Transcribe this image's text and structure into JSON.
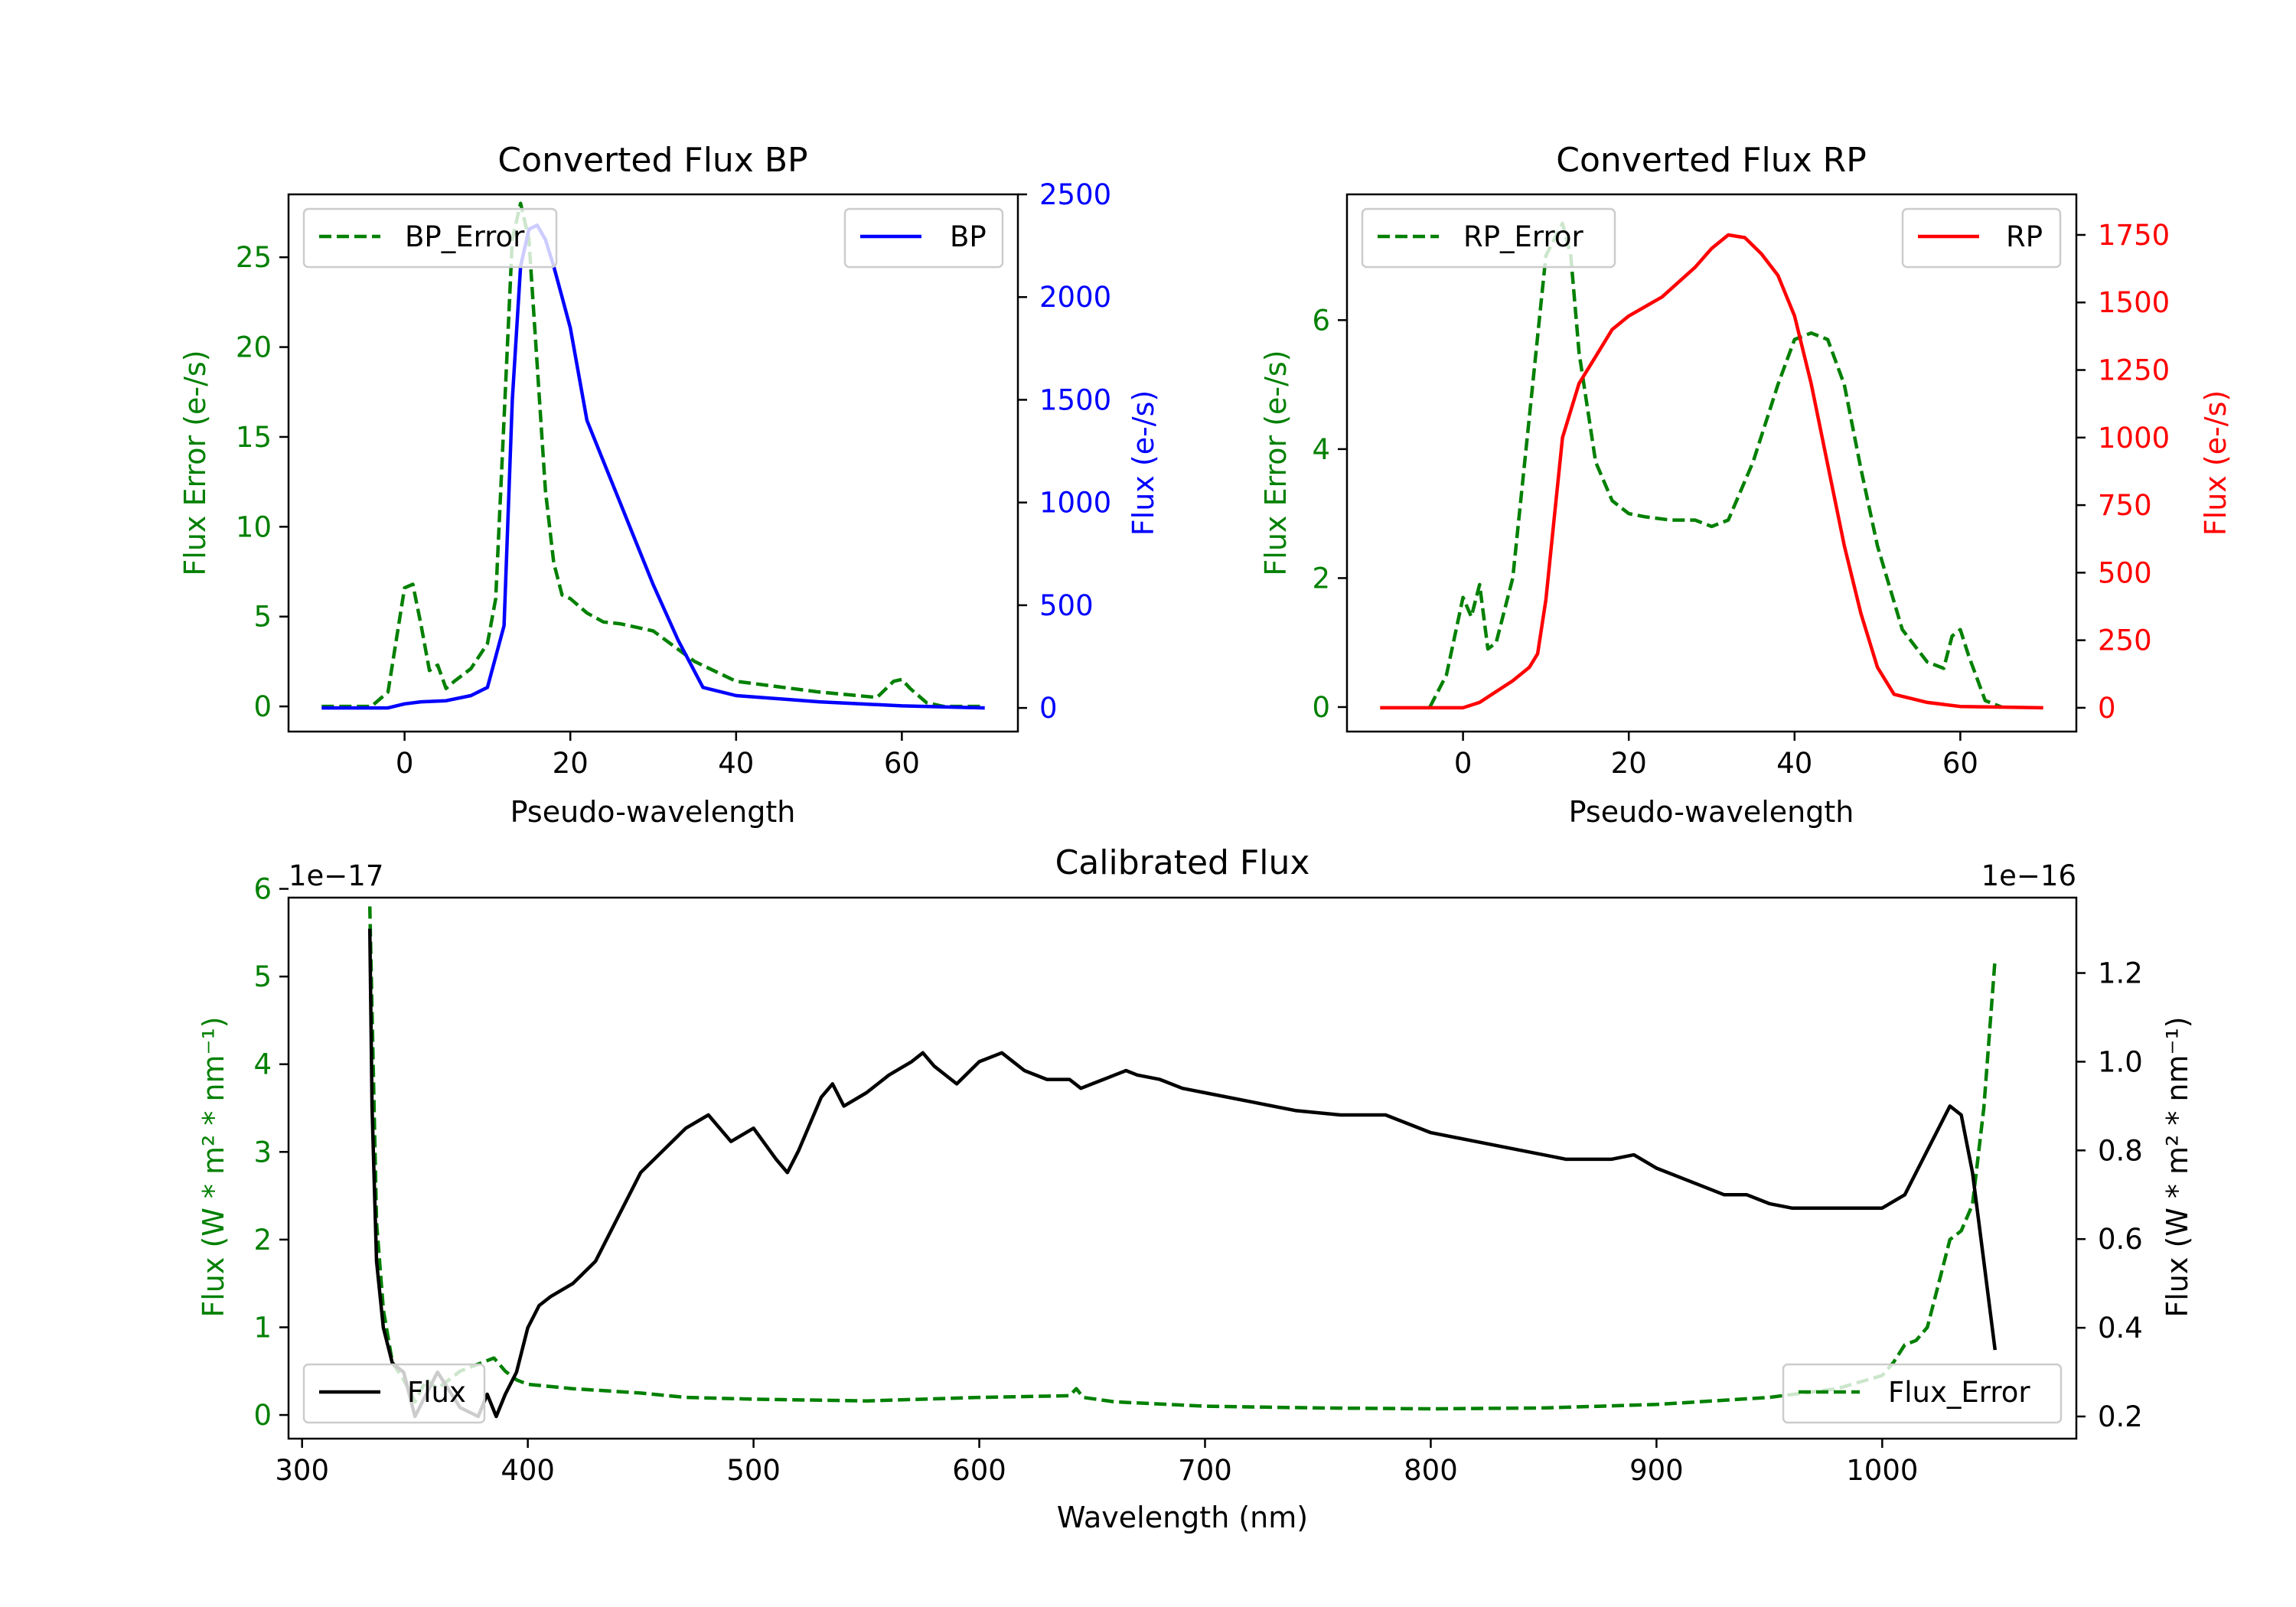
{
  "chart_data": [
    {
      "id": "bp",
      "type": "line",
      "title": "Converted Flux BP",
      "xlabel": "Pseudo-wavelength",
      "xlim": [
        -14,
        74
      ],
      "xticks": [
        "0",
        "20",
        "40",
        "60"
      ],
      "xtick_values": [
        0,
        20,
        40,
        60
      ],
      "left_axis": {
        "label": "Flux Error (e-/s)",
        "color": "#008000",
        "ylim": [
          -1.4,
          28.5
        ],
        "ticks": [
          "0",
          "5",
          "10",
          "15",
          "20",
          "25"
        ],
        "tick_values": [
          0,
          5,
          10,
          15,
          20,
          25
        ]
      },
      "right_axis": {
        "label": "Flux (e-/s)",
        "color": "#0000ff",
        "ylim": [
          -115,
          2500
        ],
        "ticks": [
          "0",
          "500",
          "1000",
          "1500",
          "2000",
          "2500"
        ],
        "tick_values": [
          0,
          500,
          1000,
          1500,
          2000,
          2500
        ]
      },
      "series": [
        {
          "name": "BP_Error",
          "axis": "left",
          "color": "#008000",
          "style": "dashed",
          "x": [
            -10,
            -4,
            -2,
            0,
            1,
            2,
            3,
            4,
            5,
            6,
            8,
            10,
            11,
            12,
            13,
            14,
            15,
            16,
            17,
            18,
            19,
            20,
            22,
            24,
            26,
            30,
            35,
            40,
            50,
            57,
            59,
            60,
            61,
            63,
            65,
            70
          ],
          "y": [
            0,
            0,
            0.8,
            6.6,
            6.8,
            4.5,
            2.0,
            2.3,
            1.0,
            1.4,
            2.1,
            3.5,
            6,
            16,
            26,
            28,
            26,
            19,
            12,
            8,
            6.2,
            6.0,
            5.2,
            4.7,
            4.6,
            4.2,
            2.5,
            1.4,
            0.8,
            0.5,
            1.4,
            1.5,
            1.0,
            0.2,
            0,
            0
          ]
        },
        {
          "name": "BP",
          "axis": "right",
          "color": "#0000ff",
          "style": "solid",
          "x": [
            -10,
            -2,
            0,
            2,
            5,
            8,
            10,
            12,
            13,
            14,
            15,
            16,
            17,
            18,
            19,
            20,
            22,
            24,
            26,
            28,
            30,
            33,
            36,
            40,
            50,
            60,
            70
          ],
          "y": [
            0,
            0,
            20,
            30,
            35,
            60,
            100,
            400,
            1500,
            2150,
            2330,
            2350,
            2280,
            2150,
            2000,
            1850,
            1400,
            1200,
            1000,
            800,
            600,
            330,
            100,
            60,
            30,
            10,
            0
          ]
        }
      ],
      "legend": [
        {
          "label": "BP_Error",
          "position": "upper-left"
        },
        {
          "label": "BP",
          "position": "upper-right"
        }
      ]
    },
    {
      "id": "rp",
      "type": "line",
      "title": "Converted Flux RP",
      "xlabel": "Pseudo-wavelength",
      "xlim": [
        -14,
        74
      ],
      "xticks": [
        "0",
        "20",
        "40",
        "60"
      ],
      "xtick_values": [
        0,
        20,
        40,
        60
      ],
      "left_axis": {
        "label": "Flux Error (e-/s)",
        "color": "#008000",
        "ylim": [
          -0.38,
          7.95
        ],
        "ticks": [
          "0",
          "2",
          "4",
          "6"
        ],
        "tick_values": [
          0,
          2,
          4,
          6
        ]
      },
      "right_axis": {
        "label": "Flux (e-/s)",
        "color": "#ff0000",
        "ylim": [
          -88,
          1900
        ],
        "ticks": [
          "0",
          "250",
          "500",
          "750",
          "1000",
          "1250",
          "1500",
          "1750"
        ],
        "tick_values": [
          0,
          250,
          500,
          750,
          1000,
          1250,
          1500,
          1750
        ]
      },
      "series": [
        {
          "name": "RP_Error",
          "axis": "left",
          "color": "#008000",
          "style": "dashed",
          "x": [
            -4,
            -2,
            0,
            1,
            2,
            3,
            4,
            6,
            8,
            10,
            12,
            13,
            14,
            16,
            18,
            20,
            22,
            25,
            28,
            30,
            32,
            35,
            38,
            40,
            42,
            44,
            46,
            48,
            50,
            53,
            56,
            58,
            59,
            60,
            61,
            63,
            65
          ],
          "y": [
            0,
            0.5,
            1.7,
            1.4,
            1.9,
            0.9,
            1.0,
            2.0,
            4.5,
            7.0,
            7.5,
            7.0,
            5.5,
            3.8,
            3.2,
            3.0,
            2.95,
            2.9,
            2.9,
            2.8,
            2.9,
            3.8,
            5.0,
            5.7,
            5.8,
            5.7,
            5.0,
            3.7,
            2.5,
            1.2,
            0.7,
            0.6,
            1.1,
            1.2,
            0.8,
            0.1,
            0
          ]
        },
        {
          "name": "RP",
          "axis": "right",
          "color": "#ff0000",
          "style": "solid",
          "x": [
            -10,
            -2,
            0,
            2,
            4,
            6,
            8,
            9,
            10,
            11,
            12,
            14,
            16,
            18,
            20,
            24,
            28,
            30,
            32,
            34,
            36,
            38,
            40,
            42,
            44,
            46,
            48,
            50,
            52,
            56,
            60,
            70
          ],
          "y": [
            0,
            0,
            0,
            20,
            60,
            100,
            150,
            200,
            400,
            700,
            1000,
            1200,
            1300,
            1400,
            1450,
            1520,
            1630,
            1700,
            1750,
            1740,
            1680,
            1600,
            1450,
            1200,
            900,
            600,
            350,
            150,
            50,
            20,
            5,
            0
          ]
        }
      ],
      "legend": [
        {
          "label": "RP_Error",
          "position": "upper-left"
        },
        {
          "label": "RP",
          "position": "upper-right"
        }
      ]
    },
    {
      "id": "cal",
      "type": "line",
      "title": "Calibrated Flux",
      "xlabel": "Wavelength (nm)",
      "xlim": [
        294,
        1086
      ],
      "xticks": [
        "300",
        "400",
        "500",
        "600",
        "700",
        "800",
        "900",
        "1000"
      ],
      "xtick_values": [
        300,
        400,
        500,
        600,
        700,
        800,
        900,
        1000
      ],
      "left_axis": {
        "label": "Flux (W * m² * nm⁻¹)",
        "color": "#008000",
        "ylim": [
          -0.27,
          5.9
        ],
        "offset_text": "1e−17",
        "ticks": [
          "0",
          "1",
          "2",
          "3",
          "4",
          "5",
          "6"
        ],
        "tick_values": [
          0,
          1,
          2,
          3,
          4,
          5,
          6
        ]
      },
      "right_axis": {
        "label": "Flux (W * m² * nm⁻¹)",
        "color": "#000000",
        "ylim": [
          0.15,
          1.37
        ],
        "offset_text": "1e−16",
        "ticks": [
          "0.2",
          "0.4",
          "0.6",
          "0.8",
          "1.0",
          "1.2"
        ],
        "tick_values": [
          0.2,
          0.4,
          0.6,
          0.8,
          1.0,
          1.2
        ]
      },
      "series": [
        {
          "name": "Flux_Error",
          "axis": "left",
          "color": "#008000",
          "style": "dashed",
          "x": [
            330,
            333,
            336,
            340,
            345,
            350,
            355,
            360,
            365,
            370,
            375,
            380,
            385,
            390,
            395,
            400,
            420,
            450,
            470,
            500,
            550,
            600,
            640,
            643,
            646,
            660,
            700,
            750,
            800,
            850,
            900,
            950,
            980,
            1000,
            1005,
            1010,
            1015,
            1020,
            1025,
            1030,
            1035,
            1040,
            1045,
            1050
          ],
          "y": [
            5.8,
            2.2,
            1.2,
            0.6,
            0.4,
            0.15,
            0.4,
            0.3,
            0.4,
            0.5,
            0.55,
            0.6,
            0.65,
            0.5,
            0.4,
            0.35,
            0.3,
            0.25,
            0.2,
            0.18,
            0.16,
            0.2,
            0.22,
            0.3,
            0.2,
            0.15,
            0.1,
            0.08,
            0.07,
            0.08,
            0.12,
            0.2,
            0.3,
            0.45,
            0.6,
            0.8,
            0.85,
            1.0,
            1.5,
            2.0,
            2.1,
            2.4,
            3.5,
            5.2
          ]
        },
        {
          "name": "Flux",
          "axis": "right",
          "color": "#000000",
          "style": "solid",
          "x": [
            330,
            331,
            333,
            336,
            340,
            345,
            350,
            355,
            360,
            370,
            378,
            382,
            386,
            390,
            395,
            400,
            405,
            410,
            420,
            430,
            440,
            450,
            460,
            470,
            480,
            490,
            500,
            510,
            515,
            520,
            530,
            535,
            540,
            550,
            560,
            570,
            575,
            580,
            590,
            600,
            610,
            620,
            630,
            640,
            645,
            650,
            655,
            660,
            665,
            670,
            680,
            690,
            700,
            720,
            740,
            760,
            780,
            800,
            820,
            840,
            860,
            880,
            890,
            900,
            920,
            930,
            940,
            950,
            960,
            980,
            1000,
            1010,
            1020,
            1030,
            1035,
            1040,
            1045,
            1050
          ],
          "y": [
            1.3,
            0.9,
            0.55,
            0.4,
            0.32,
            0.3,
            0.2,
            0.25,
            0.3,
            0.22,
            0.2,
            0.25,
            0.2,
            0.25,
            0.3,
            0.4,
            0.45,
            0.47,
            0.5,
            0.55,
            0.65,
            0.75,
            0.8,
            0.85,
            0.88,
            0.82,
            0.85,
            0.78,
            0.75,
            0.8,
            0.92,
            0.95,
            0.9,
            0.93,
            0.97,
            1.0,
            1.02,
            0.99,
            0.95,
            1.0,
            1.02,
            0.98,
            0.96,
            0.96,
            0.94,
            0.95,
            0.96,
            0.97,
            0.98,
            0.97,
            0.96,
            0.94,
            0.93,
            0.91,
            0.89,
            0.88,
            0.88,
            0.84,
            0.82,
            0.8,
            0.78,
            0.78,
            0.79,
            0.76,
            0.72,
            0.7,
            0.7,
            0.68,
            0.67,
            0.67,
            0.67,
            0.7,
            0.8,
            0.9,
            0.88,
            0.75,
            0.55,
            0.35
          ]
        }
      ],
      "legend": [
        {
          "label": "Flux",
          "position": "lower-left"
        },
        {
          "label": "Flux_Error",
          "position": "lower-right"
        }
      ]
    }
  ]
}
